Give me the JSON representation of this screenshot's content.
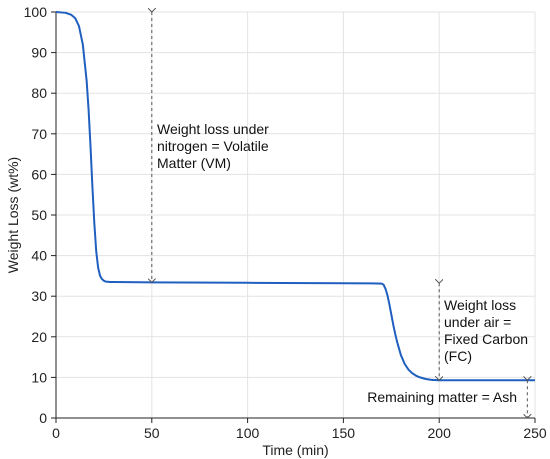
{
  "chart_data": {
    "type": "line",
    "title": "",
    "xlabel": "Time (min)",
    "ylabel": "Weight Loss (wt%)",
    "xlim": [
      0,
      250
    ],
    "ylim": [
      0,
      100
    ],
    "x_ticks": [
      0,
      50,
      100,
      150,
      200,
      250
    ],
    "y_ticks": [
      0,
      10,
      20,
      30,
      40,
      50,
      60,
      70,
      80,
      90,
      100
    ],
    "grid": true,
    "series": [
      {
        "color": "#1f5fbf",
        "x": [
          0,
          5,
          8,
          10,
          12,
          14,
          16,
          17,
          18,
          19,
          20,
          21,
          22,
          23,
          24,
          25,
          26,
          27,
          28,
          30,
          50,
          100,
          150,
          165,
          170,
          171,
          172,
          173,
          174,
          175,
          176,
          177,
          178,
          180,
          182,
          184,
          186,
          188,
          190,
          193,
          196,
          200,
          220,
          250
        ],
        "y": [
          100,
          99.8,
          99.3,
          98.5,
          96.5,
          92,
          83,
          76,
          67,
          57,
          48,
          41,
          37,
          35,
          34.2,
          33.8,
          33.6,
          33.55,
          33.5,
          33.5,
          33.4,
          33.3,
          33.2,
          33.15,
          33.1,
          32.8,
          31.8,
          30.2,
          28,
          25.5,
          23,
          20.8,
          18.8,
          15.5,
          13.3,
          11.9,
          11,
          10.4,
          10,
          9.6,
          9.4,
          9.3,
          9.3,
          9.3
        ]
      }
    ],
    "annotations": [
      {
        "id": "vm",
        "lines": [
          "Weight loss under",
          "nitrogen = Volatile",
          "Matter (VM)"
        ],
        "x": 50,
        "y_from": 100,
        "y_to": 33.4
      },
      {
        "id": "fc",
        "lines": [
          "Weight loss",
          "under air =",
          "Fixed Carbon",
          "(FC)"
        ],
        "x": 200,
        "y_from": 33.2,
        "y_to": 9.3
      },
      {
        "id": "ash",
        "lines": [
          "Remaining matter = Ash"
        ],
        "x": 246,
        "y_from": 9.3,
        "y_to": 0
      }
    ]
  }
}
